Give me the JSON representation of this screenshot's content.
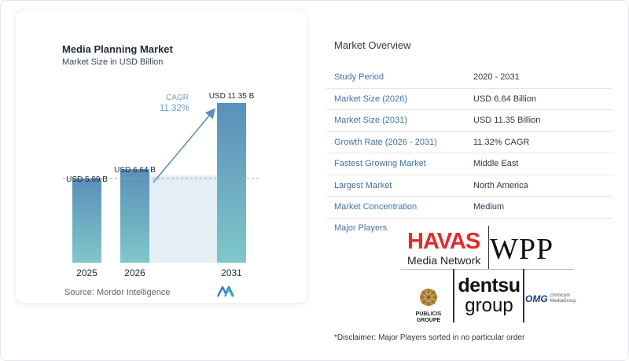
{
  "chart_data": {
    "type": "bar",
    "title": "Media Planning Market",
    "subtitle": "Market Size in USD Billion",
    "categories": [
      "2025",
      "2026",
      "2031"
    ],
    "values": [
      5.99,
      6.64,
      11.35
    ],
    "data_labels": [
      "USD 5.99 B",
      "USD 6.64 B",
      "USD 11.35 B"
    ],
    "cagr_label": "CAGR",
    "cagr_value": "11.32%",
    "ylim": [
      0,
      11.35
    ],
    "colors": {
      "bar_top": "#5a8fba",
      "bar_bottom": "#7fc7c9",
      "shade": "#e5edf5",
      "arrow": "#5a8fba",
      "cagr": "#6a9ec8"
    }
  },
  "source": "Source:  Mordor Intelligence",
  "overview": {
    "title": "Market Overview",
    "rows": [
      {
        "label": "Study Period",
        "value": "2020 - 2031"
      },
      {
        "label": "Market Size (2026)",
        "value": "USD 6.64 Billion"
      },
      {
        "label": "Market Size (2031)",
        "value": "USD 11.35 Billion"
      },
      {
        "label": "Growth Rate (2026 - 2031)",
        "value": "11.32% CAGR"
      },
      {
        "label": "Fastest Growing Market",
        "value": "Middle East"
      },
      {
        "label": "Largest Market",
        "value": "North America"
      },
      {
        "label": "Market Concentration",
        "value": "Medium"
      }
    ],
    "players_label": "Major Players"
  },
  "players": {
    "havas": "HAVAS",
    "havas_sub": "Media Network",
    "wpp": "WPP",
    "dentsu": "dentsu",
    "dentsu_group": "group",
    "publicis": "PUBLICIS",
    "publicis_sub": "GROUPE",
    "omg": "OMG",
    "omg_sub1": "Omnicom",
    "omg_sub2": "MediaGroup"
  },
  "disclaimer": "*Disclaimer: Major Players sorted in no particular order"
}
